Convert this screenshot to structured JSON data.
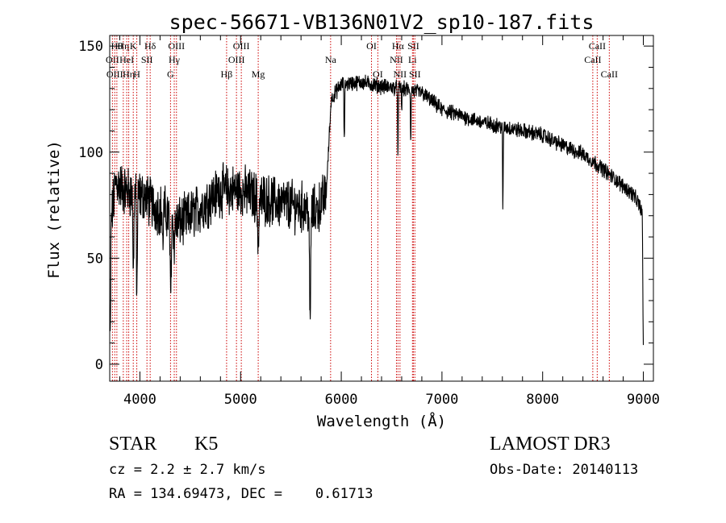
{
  "chart_data": {
    "type": "line",
    "title": "spec-56671-VB136N01V2_sp10-187.fits",
    "xlabel": "Wavelength (Å)",
    "ylabel": "Flux (relative)",
    "xlim": [
      3700,
      9100
    ],
    "ylim": [
      -8,
      155
    ],
    "x_ticks": [
      4000,
      5000,
      6000,
      7000,
      8000,
      9000
    ],
    "y_ticks": [
      0,
      50,
      100,
      150
    ],
    "line_color": "#000000",
    "marker_color": "#cc0000",
    "continuum": [
      [
        3700,
        62
      ],
      [
        3760,
        86
      ],
      [
        3850,
        82
      ],
      [
        3950,
        80
      ],
      [
        4050,
        79
      ],
      [
        4150,
        74
      ],
      [
        4250,
        72
      ],
      [
        4350,
        66
      ],
      [
        4450,
        68
      ],
      [
        4600,
        74
      ],
      [
        4800,
        82
      ],
      [
        5000,
        82
      ],
      [
        5200,
        78
      ],
      [
        5400,
        76
      ],
      [
        5600,
        74
      ],
      [
        5750,
        72
      ],
      [
        5850,
        80
      ],
      [
        5900,
        125
      ],
      [
        6000,
        132
      ],
      [
        6200,
        133
      ],
      [
        6400,
        131
      ],
      [
        6600,
        130
      ],
      [
        6800,
        128
      ],
      [
        7000,
        120
      ],
      [
        7200,
        117
      ],
      [
        7400,
        114
      ],
      [
        7600,
        112
      ],
      [
        7800,
        110
      ],
      [
        8000,
        108
      ],
      [
        8200,
        103
      ],
      [
        8400,
        99
      ],
      [
        8600,
        92
      ],
      [
        8800,
        84
      ],
      [
        8900,
        80
      ],
      [
        8960,
        75
      ],
      [
        9000,
        70
      ]
    ],
    "absorption_features": [
      {
        "x": 3705,
        "depth": 55,
        "width": 6
      },
      {
        "x": 3935,
        "depth": 40,
        "width": 6
      },
      {
        "x": 3970,
        "depth": 48,
        "width": 6
      },
      {
        "x": 4227,
        "depth": 20,
        "width": 5
      },
      {
        "x": 4305,
        "depth": 35,
        "width": 8
      },
      {
        "x": 4340,
        "depth": 15,
        "width": 5
      },
      {
        "x": 5175,
        "depth": 20,
        "width": 10
      },
      {
        "x": 5690,
        "depth": 55,
        "width": 8
      },
      {
        "x": 6030,
        "depth": 25,
        "width": 5
      },
      {
        "x": 6563,
        "depth": 35,
        "width": 4
      },
      {
        "x": 6600,
        "depth": 10,
        "width": 4
      },
      {
        "x": 6690,
        "depth": 25,
        "width": 4
      },
      {
        "x": 7605,
        "depth": 40,
        "width": 4
      },
      {
        "x": 9000,
        "depth": 62,
        "width": 6
      }
    ],
    "noise": {
      "blue": 20,
      "red": 6
    },
    "line_markers": [
      {
        "x": 3727,
        "label": "OII",
        "row": 1
      },
      {
        "x": 3750,
        "label": "OIII",
        "row": 2
      },
      {
        "x": 3771,
        "label": "Hθ",
        "row": 0
      },
      {
        "x": 3835,
        "label": "Hη",
        "row": 0
      },
      {
        "x": 3869,
        "label": "HeI",
        "row": 1
      },
      {
        "x": 3889,
        "label": "Hη",
        "row": 2
      },
      {
        "x": 3934,
        "label": "K",
        "row": 0
      },
      {
        "x": 3969,
        "label": "H",
        "row": 2
      },
      {
        "x": 4070,
        "label": "SII",
        "row": 1
      },
      {
        "x": 4102,
        "label": "Hδ",
        "row": 0
      },
      {
        "x": 4304,
        "label": "G",
        "row": 2
      },
      {
        "x": 4341,
        "label": "Hγ",
        "row": 1
      },
      {
        "x": 4363,
        "label": "OIII",
        "row": 0
      },
      {
        "x": 4861,
        "label": "Hβ",
        "row": 2
      },
      {
        "x": 4959,
        "label": "OIII",
        "row": 1
      },
      {
        "x": 5007,
        "label": "OIII",
        "row": 0
      },
      {
        "x": 5175,
        "label": "Mg",
        "row": 2
      },
      {
        "x": 5894,
        "label": "Na",
        "row": 1
      },
      {
        "x": 6300,
        "label": "OI",
        "row": 0
      },
      {
        "x": 6363,
        "label": "OI",
        "row": 2
      },
      {
        "x": 6548,
        "label": "NII",
        "row": 1
      },
      {
        "x": 6563,
        "label": "Hα",
        "row": 0
      },
      {
        "x": 6583,
        "label": "NII",
        "row": 2
      },
      {
        "x": 6707,
        "label": "Li",
        "row": 1
      },
      {
        "x": 6716,
        "label": "SII",
        "row": 0
      },
      {
        "x": 6731,
        "label": "SII",
        "row": 2
      },
      {
        "x": 8498,
        "label": "CaII",
        "row": 1
      },
      {
        "x": 8542,
        "label": "CaII",
        "row": 0
      },
      {
        "x": 8662,
        "label": "CaII",
        "row": 2
      }
    ]
  },
  "info": {
    "object_class": "STAR",
    "subclass": "K5",
    "redshift": "cz = 2.2 ± 2.7 km/s",
    "coordinates": "RA = 134.69473, DEC =    0.61713",
    "survey": "LAMOST DR3",
    "obs_date": "Obs-Date: 20140113"
  }
}
